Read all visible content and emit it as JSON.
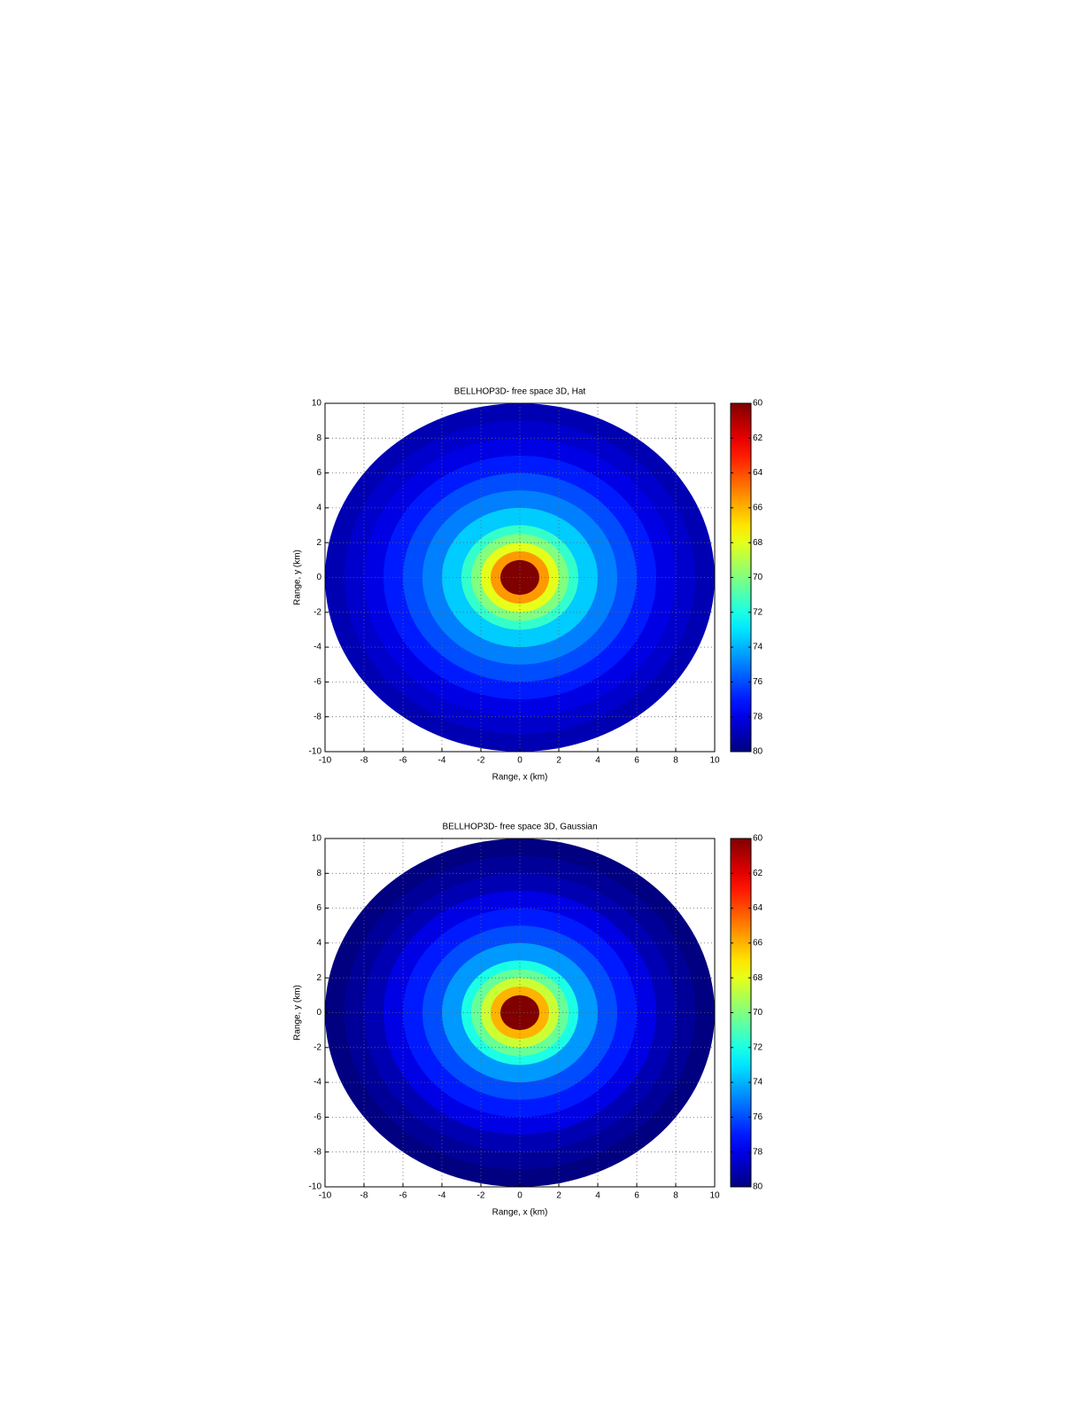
{
  "chart_data": [
    {
      "type": "radial_heatmap",
      "title": "BELLHOP3D- free space 3D, Hat",
      "xlabel": "Range, x (km)",
      "ylabel": "Range, y (km)",
      "xlim": [
        -10,
        10
      ],
      "ylim": [
        -10,
        10
      ],
      "xticks": [
        -10,
        -8,
        -6,
        -4,
        -2,
        0,
        2,
        4,
        6,
        8,
        10
      ],
      "yticks": [
        -10,
        -8,
        -6,
        -4,
        -2,
        0,
        2,
        4,
        6,
        8,
        10
      ],
      "grid": true,
      "colormap": "jet",
      "colorbar_reversed": true,
      "clim": [
        60,
        80
      ],
      "cticks": [
        60,
        62,
        64,
        66,
        68,
        70,
        72,
        74,
        76,
        78,
        80
      ],
      "x": [
        10,
        9,
        8,
        7,
        6,
        5,
        4,
        3,
        2.5,
        2,
        1.5,
        1
      ],
      "values": [
        79,
        78.5,
        78,
        77,
        76,
        75,
        73.5,
        71.5,
        70,
        68,
        65.5,
        60
      ]
    },
    {
      "type": "radial_heatmap",
      "title": "BELLHOP3D- free space 3D, Gaussian",
      "xlabel": "Range, x (km)",
      "ylabel": "Range, y (km)",
      "xlim": [
        -10,
        10
      ],
      "ylim": [
        -10,
        10
      ],
      "xticks": [
        -10,
        -8,
        -6,
        -4,
        -2,
        0,
        2,
        4,
        6,
        8,
        10
      ],
      "yticks": [
        -10,
        -8,
        -6,
        -4,
        -2,
        0,
        2,
        4,
        6,
        8,
        10
      ],
      "grid": true,
      "colormap": "jet",
      "colorbar_reversed": true,
      "clim": [
        60,
        80
      ],
      "cticks": [
        60,
        62,
        64,
        66,
        68,
        70,
        72,
        74,
        76,
        78,
        80
      ],
      "x": [
        10,
        9,
        8,
        7,
        6,
        5,
        4,
        3,
        2.5,
        2,
        1.5,
        1
      ],
      "values": [
        80,
        79.5,
        79,
        78,
        77,
        76,
        74.5,
        72,
        70.5,
        68.5,
        66,
        60
      ]
    }
  ]
}
